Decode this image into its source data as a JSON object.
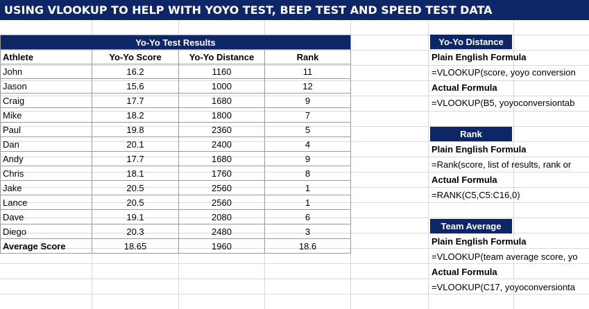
{
  "title": "USING VLOOKUP TO HELP WITH YOYO TEST, BEEP TEST AND SPEED TEST DATA",
  "table": {
    "title": "Yo-Yo Test Results",
    "headers": [
      "Athlete",
      "Yo-Yo Score",
      "Yo-Yo Distance",
      "Rank"
    ],
    "rows": [
      [
        "John",
        "16.2",
        "1160",
        "11"
      ],
      [
        "Jason",
        "15.6",
        "1000",
        "12"
      ],
      [
        "Craig",
        "17.7",
        "1680",
        "9"
      ],
      [
        "Mike",
        "18.2",
        "1800",
        "7"
      ],
      [
        "Paul",
        "19.8",
        "2360",
        "5"
      ],
      [
        "Dan",
        "20.1",
        "2400",
        "4"
      ],
      [
        "Andy",
        "17.7",
        "1680",
        "9"
      ],
      [
        "Chris",
        "18.1",
        "1760",
        "8"
      ],
      [
        "Jake",
        "20.5",
        "2560",
        "1"
      ],
      [
        "Lance",
        "20.5",
        "2560",
        "1"
      ],
      [
        "Dave",
        "19.1",
        "2080",
        "6"
      ],
      [
        "Diego",
        "20.3",
        "2480",
        "3"
      ]
    ],
    "average": [
      "Average Score",
      "18.65",
      "1960",
      "18.6"
    ]
  },
  "sections": [
    {
      "heading": "Yo-Yo Distance",
      "plain_label": "Plain English Formula",
      "plain_formula": "=VLOOKUP(score, yoyo conversion",
      "actual_label": "Actual Formula",
      "actual_formula": "=VLOOKUP(B5, yoyoconversiontab"
    },
    {
      "heading": "Rank",
      "plain_label": "Plain English Formula",
      "plain_formula": "=Rank(score, list of results, rank or",
      "actual_label": "Actual Formula",
      "actual_formula": "=RANK(C5,C5:C16,0)"
    },
    {
      "heading": "Team Average",
      "plain_label": "Plain English Formula",
      "plain_formula": "=VLOOKUP(team average score, yo",
      "actual_label": "Actual Formula",
      "actual_formula": "=VLOOKUP(C17, yoyoconversionta"
    }
  ]
}
